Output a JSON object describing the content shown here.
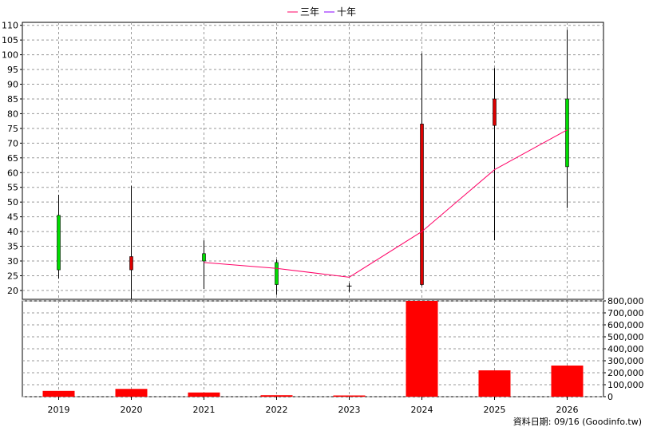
{
  "legend": {
    "three_year_label": "三年",
    "ten_year_label": "十年"
  },
  "source_text": "資料日期: 09/16  (Goodinfo.tw)",
  "colors": {
    "up_candle": "#00dd00",
    "down_candle": "#dd0000",
    "wick": "#000000",
    "three_year_line": "#ff0066",
    "ten_year_line": "#8800ff",
    "volume_bar": "#ff0000",
    "grid": "#999999"
  },
  "chart_data": [
    {
      "type": "candlestick",
      "categories": [
        "2019",
        "2020",
        "2021",
        "2022",
        "2023",
        "2024",
        "2025",
        "2026"
      ],
      "y_ticks": [
        20,
        25,
        30,
        35,
        40,
        45,
        50,
        55,
        60,
        65,
        70,
        75,
        80,
        85,
        90,
        95,
        100,
        105,
        110
      ],
      "ylim": [
        17,
        111
      ],
      "ohlc": [
        {
          "year": "2019",
          "open": 27,
          "high": 52.5,
          "low": 24,
          "close": 45.5
        },
        {
          "year": "2020",
          "open": 31.5,
          "high": 55.5,
          "low": 17,
          "close": 27
        },
        {
          "year": "2021",
          "open": 30,
          "high": 37,
          "low": 20.5,
          "close": 32.5
        },
        {
          "year": "2022",
          "open": 22,
          "high": 30.5,
          "low": 18.5,
          "close": 29.5
        },
        {
          "year": "2023",
          "open": 21.5,
          "high": 22.5,
          "low": 19.5,
          "close": 21.5
        },
        {
          "year": "2024",
          "open": 76.5,
          "high": 100.5,
          "low": 21.5,
          "close": 22
        },
        {
          "year": "2025",
          "open": 85,
          "high": 95.5,
          "low": 37,
          "close": 76
        },
        {
          "year": "2026",
          "open": 62,
          "high": 108.5,
          "low": 48,
          "close": 85
        }
      ],
      "series": [
        {
          "name": "三年",
          "x": [
            "2021",
            "2022",
            "2023",
            "2024",
            "2025",
            "2026"
          ],
          "values": [
            29.5,
            27.5,
            24.5,
            40,
            61,
            74.5
          ]
        }
      ]
    },
    {
      "type": "bar",
      "categories": [
        "2019",
        "2020",
        "2021",
        "2022",
        "2023",
        "2024",
        "2025",
        "2026"
      ],
      "values": [
        48000,
        65000,
        35000,
        12000,
        10000,
        800000,
        220000,
        260000
      ],
      "y_ticks": [
        0,
        100000,
        200000,
        300000,
        400000,
        500000,
        600000,
        700000,
        800000
      ],
      "y_tick_labels": [
        "0",
        "100,000",
        "200,000",
        "300,000",
        "400,000",
        "500,000",
        "600,000",
        "700,000",
        "800,000"
      ],
      "ylim": [
        0,
        800000
      ]
    }
  ]
}
